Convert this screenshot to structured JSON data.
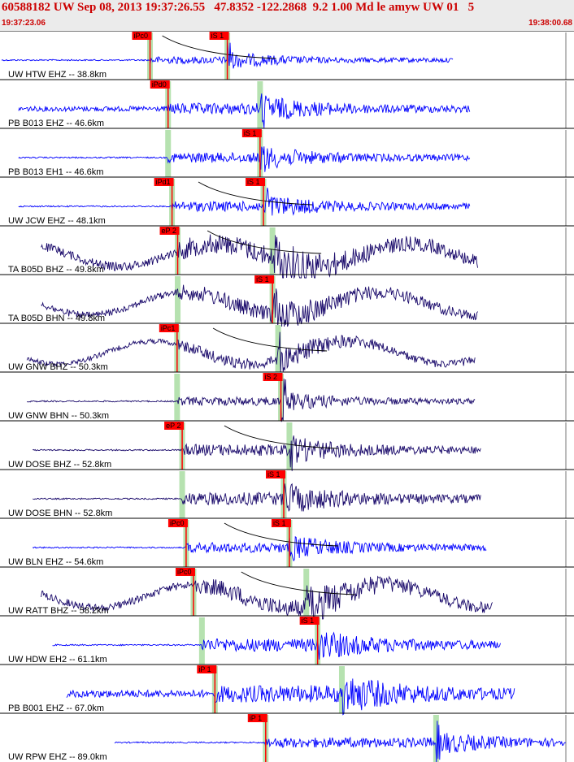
{
  "header": {
    "title": "60588182 UW Sep 08, 2013 19:37:26.55   47.8352 -122.2868  9.2 1.00 Md le amyw UW 01   5",
    "start_time": "19:37:23.06",
    "end_time": "19:38:00.68"
  },
  "colors": {
    "header_bg": "#ebebeb",
    "header_text": "#cc0000",
    "pick": "#ff0000",
    "trace_blue": "#0000ff",
    "trace_navy": "#1a0a6b",
    "band": "#b6e2b0"
  },
  "traces": [
    {
      "label": "UW HTW EHZ -- 38.8km",
      "color": "blue",
      "p_pick": "iPc0",
      "s_pick": "iS 1",
      "p_t": 0.263,
      "s_t": 0.4,
      "start": 0.0,
      "end": 0.8,
      "flat_pre": true,
      "amp": 0.25,
      "curve": true
    },
    {
      "label": "PB B013 EHZ -- 46.6km",
      "color": "blue",
      "p_pick": "iPd0",
      "s_pick": "",
      "p_t": 0.295,
      "s_t": 0.458,
      "start": 0.03,
      "end": 0.83,
      "flat_pre": false,
      "amp": 0.4,
      "curve": false
    },
    {
      "label": "PB B013 EH1 -- 46.6km",
      "color": "blue",
      "p_pick": "",
      "s_pick": "iS 1",
      "p_t": 0.295,
      "s_t": 0.458,
      "start": 0.03,
      "end": 0.83,
      "flat_pre": true,
      "amp": 0.35,
      "curve": false
    },
    {
      "label": "UW JCW EHZ -- 48.1km",
      "color": "blue",
      "p_pick": "iPd1",
      "s_pick": "iS 1",
      "p_t": 0.302,
      "s_t": 0.464,
      "start": 0.03,
      "end": 0.83,
      "flat_pre": true,
      "amp": 0.35,
      "curve": true
    },
    {
      "label": "TA B05D BHZ -- 49.8km",
      "color": "navy",
      "p_pick": "eP 2",
      "s_pick": "",
      "p_t": 0.312,
      "s_t": 0.48,
      "start": 0.07,
      "end": 0.845,
      "flat_pre": false,
      "amp": 0.7,
      "curve": true,
      "wave": true
    },
    {
      "label": "TA B05D BHN -- 49.8km",
      "color": "navy",
      "p_pick": "",
      "s_pick": "iS 1",
      "p_t": 0.312,
      "s_t": 0.48,
      "start": 0.07,
      "end": 0.845,
      "flat_pre": false,
      "amp": 0.55,
      "curve": false,
      "wave": true
    },
    {
      "label": "UW GNW BHZ -- 50.3km",
      "color": "navy",
      "p_pick": "iPc1",
      "s_pick": "",
      "p_t": 0.311,
      "s_t": 0.49,
      "start": 0.045,
      "end": 0.84,
      "flat_pre": false,
      "amp": 0.4,
      "curve": true,
      "wave": true
    },
    {
      "label": "UW GNW BHN -- 50.3km",
      "color": "navy",
      "p_pick": "",
      "s_pick": "iS 2",
      "p_t": 0.311,
      "s_t": 0.495,
      "start": 0.045,
      "end": 0.84,
      "flat_pre": true,
      "amp": 0.3,
      "curve": false
    },
    {
      "label": "UW DOSE BHZ -- 52.8km",
      "color": "navy",
      "p_pick": "eP 2",
      "s_pick": "",
      "p_t": 0.32,
      "s_t": 0.51,
      "start": 0.055,
      "end": 0.85,
      "flat_pre": true,
      "amp": 0.4,
      "curve": true
    },
    {
      "label": "UW DOSE BHN -- 52.8km",
      "color": "navy",
      "p_pick": "",
      "s_pick": "iS 1",
      "p_t": 0.32,
      "s_t": 0.5,
      "start": 0.055,
      "end": 0.85,
      "flat_pre": true,
      "amp": 0.45,
      "curve": false
    },
    {
      "label": "UW BLN EHZ -- 54.6km",
      "color": "blue",
      "p_pick": "iPc0",
      "s_pick": "iS 1",
      "p_t": 0.327,
      "s_t": 0.51,
      "start": 0.055,
      "end": 0.86,
      "flat_pre": true,
      "amp": 0.35,
      "curve": true
    },
    {
      "label": "UW RATT BHZ -- 58.2km",
      "color": "navy",
      "p_pick": "iPc0",
      "s_pick": "",
      "p_t": 0.34,
      "s_t": 0.54,
      "start": 0.07,
      "end": 0.87,
      "flat_pre": false,
      "amp": 0.6,
      "curve": true,
      "wave": true
    },
    {
      "label": "UW HDW EH2 -- 61.1km",
      "color": "blue",
      "p_pick": "",
      "s_pick": "iS 1",
      "p_t": 0.355,
      "s_t": 0.56,
      "start": 0.09,
      "end": 0.885,
      "flat_pre": true,
      "amp": 0.45,
      "curve": false
    },
    {
      "label": "PB B001 EHZ -- 67.0km",
      "color": "blue",
      "p_pick": "iP 1",
      "s_pick": "",
      "p_t": 0.378,
      "s_t": 0.603,
      "start": 0.115,
      "end": 0.91,
      "flat_pre": false,
      "amp": 0.6,
      "curve": false
    },
    {
      "label": "UW RPW EHZ -- 89.0km",
      "color": "blue",
      "p_pick": "iP 1",
      "s_pick": "",
      "p_t": 0.468,
      "s_t": 0.77,
      "start": 0.2,
      "end": 1.0,
      "flat_pre": true,
      "amp": 0.35,
      "curve": false
    }
  ]
}
